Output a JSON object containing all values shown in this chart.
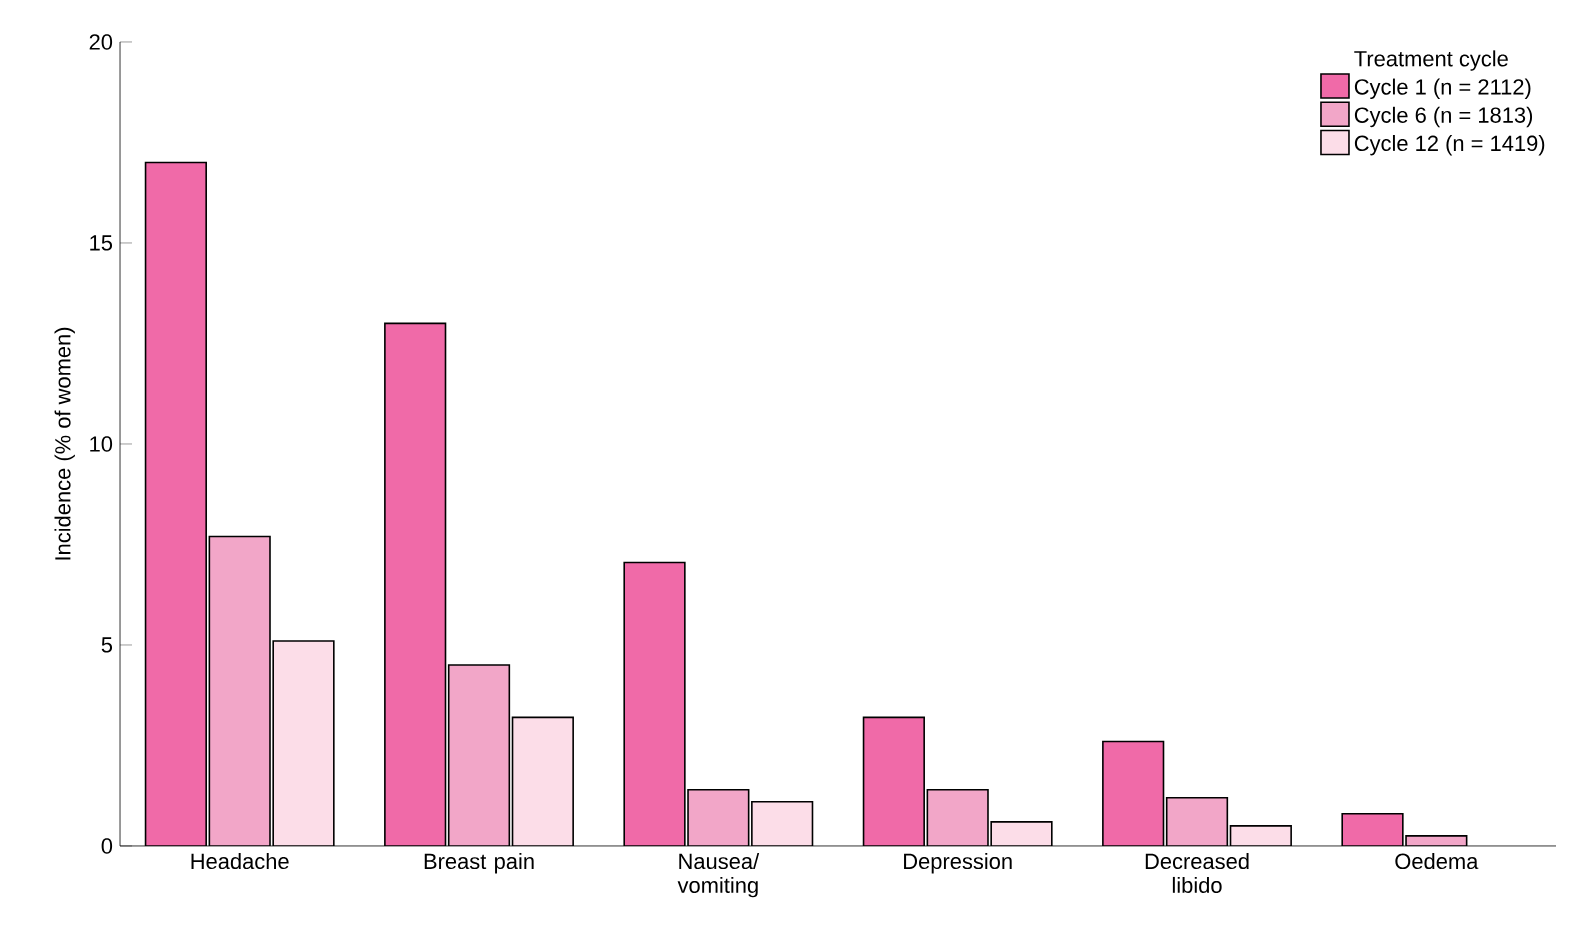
{
  "chart_data": {
    "type": "bar",
    "ylabel": "Incidence (% of women)",
    "legend_title": "Treatment cycle",
    "legend": "top right",
    "grid": false,
    "categories": [
      "Headache",
      "Breast pain",
      "Nausea/ vomiting",
      "Depression",
      "Decreased libido",
      "Oedema"
    ],
    "ylim": [
      0,
      20
    ],
    "yticks": [
      0,
      5,
      10,
      15,
      20
    ],
    "series": [
      {
        "name": "Cycle 1 (n = 2112)",
        "color": "#f06aa8",
        "values": [
          17,
          13,
          7.05,
          3.2,
          2.6,
          0.8
        ]
      },
      {
        "name": "Cycle 6 (n = 1813)",
        "color": "#f2a6c8",
        "values": [
          7.7,
          4.5,
          1.4,
          1.4,
          1.2,
          0.25
        ]
      },
      {
        "name": "Cycle 12 (n = 1419)",
        "color": "#fcdde8",
        "values": [
          5.1,
          3.2,
          1.1,
          0.6,
          0.5,
          null
        ]
      }
    ]
  }
}
